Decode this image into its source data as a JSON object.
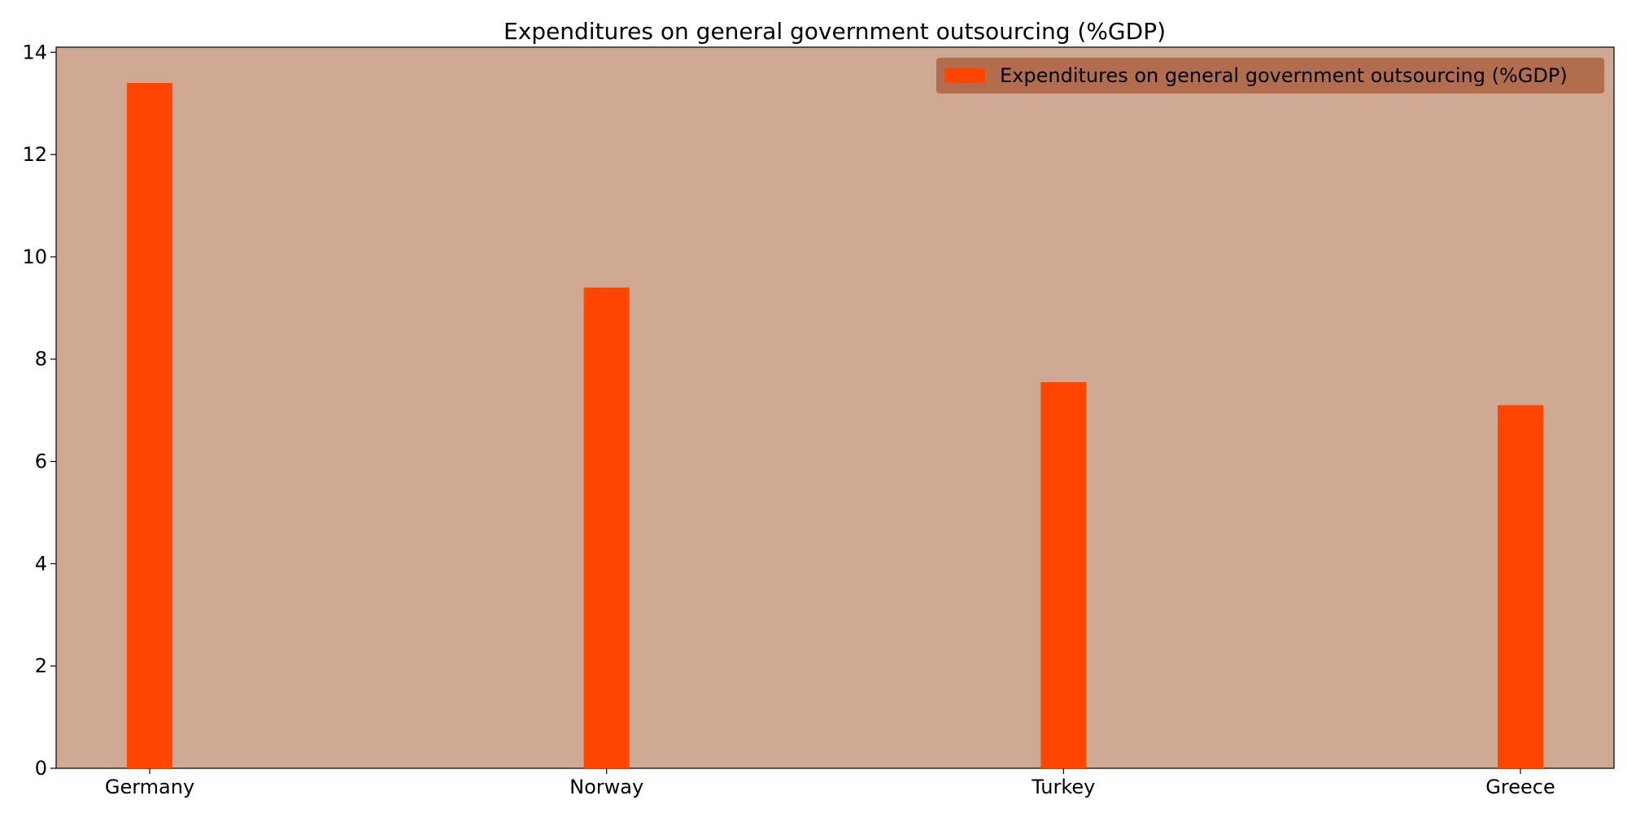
{
  "chart_data": {
    "type": "bar",
    "title": "Expenditures on general government outsourcing (%GDP)",
    "xlabel": "",
    "ylabel": "",
    "categories": [
      "Germany",
      "Norway",
      "Turkey",
      "Greece"
    ],
    "series": [
      {
        "name": "Expenditures on general government outsourcing (%GDP)",
        "values": [
          13.4,
          9.4,
          7.55,
          7.1
        ]
      }
    ],
    "ylim": [
      0,
      14.1
    ],
    "yticks": [
      0,
      2,
      4,
      6,
      8,
      10,
      12,
      14
    ],
    "grid": false,
    "legend": "top-right",
    "colors": {
      "bar": "#ff4500",
      "plot_background": "#cfa894",
      "legend_background": "#b0694a"
    }
  }
}
